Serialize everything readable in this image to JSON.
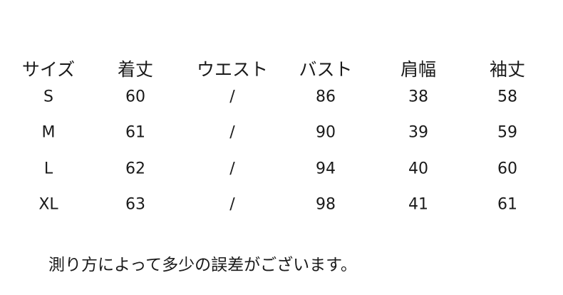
{
  "table": {
    "headers": [
      "サイズ",
      "着丈",
      "ウエスト",
      "バスト",
      "肩幅",
      "袖丈"
    ],
    "rows": [
      [
        "S",
        "60",
        "/",
        "86",
        "38",
        "58"
      ],
      [
        "M",
        "61",
        "/",
        "90",
        "39",
        "59"
      ],
      [
        "L",
        "62",
        "/",
        "94",
        "40",
        "60"
      ],
      [
        "XL",
        "63",
        "/",
        "98",
        "41",
        "61"
      ]
    ]
  },
  "note": "測り方によって多少の誤差がございます。"
}
